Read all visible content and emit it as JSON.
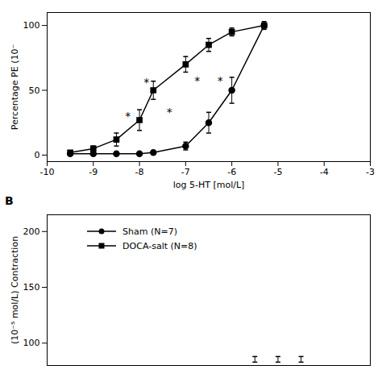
{
  "chart_data": [
    {
      "type": "line",
      "xlabel": "log 5-HT [mol/L]",
      "ylabel": "Percentage PE (10⁻",
      "x": [
        -9.5,
        -9,
        -8.5,
        -8,
        -7.7,
        -7,
        -6.5,
        -6,
        -5.3
      ],
      "series": [
        {
          "name": "Sham (N=7)",
          "color": "black",
          "marker": "circle",
          "line_style": "solid",
          "values": [
            1,
            1,
            1,
            1,
            2,
            7,
            25,
            50,
            100
          ],
          "yerr": [
            0.5,
            0.5,
            0.5,
            0.5,
            1,
            3,
            8,
            10,
            3
          ]
        },
        {
          "name": "DOCA-salt (N=8)",
          "color": "black",
          "marker": "square",
          "line_style": "solid",
          "values": [
            2,
            5,
            12,
            27,
            50,
            70,
            85,
            95,
            100
          ],
          "yerr": [
            1,
            2,
            5,
            8,
            7,
            6,
            5,
            3,
            1
          ]
        }
      ],
      "annotations": [
        {
          "text": "*",
          "x": -8.25,
          "y": 30
        },
        {
          "text": "*",
          "x": -7.85,
          "y": 56
        },
        {
          "text": "*",
          "x": -7.35,
          "y": 33
        },
        {
          "text": "*",
          "x": -6.75,
          "y": 57
        },
        {
          "text": "*",
          "x": -6.25,
          "y": 57
        }
      ],
      "xlim": [
        -10,
        -3
      ],
      "ylim": [
        -5,
        110
      ],
      "xticks": [
        -10,
        -9,
        -8,
        -7,
        -6,
        -5,
        -4,
        -3
      ],
      "yticks": [
        0,
        50,
        100
      ]
    },
    {
      "type": "errorbar",
      "title": "B",
      "ylabel": "(10⁻⁵ mol/L) Contraction",
      "x": [
        -5.5,
        -5.0,
        -4.5
      ],
      "values": [
        88,
        88,
        88
      ],
      "error_lower": [
        5,
        5,
        5
      ],
      "error_upper": [
        0,
        0,
        0
      ],
      "color": "black",
      "xlim": [
        -10,
        -3
      ],
      "ylim": [
        80,
        215
      ],
      "yticks": [
        100,
        150,
        200
      ],
      "tick_labels": "y",
      "legend": "upper left"
    }
  ]
}
